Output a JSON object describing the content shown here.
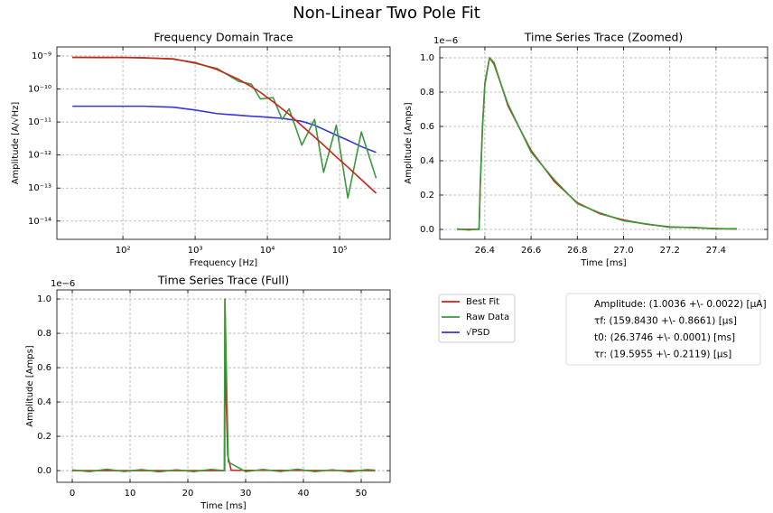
{
  "title": "Non-Linear Two Pole Fit",
  "chart_data": [
    {
      "type": "line",
      "title": "Frequency Domain Trace",
      "xlabel": "Frequency [Hz]",
      "ylabel": "Amplitude [A/√Hz]",
      "xlog": true,
      "ylog": true,
      "grid": true,
      "xlim": [
        12.2,
        500000
      ],
      "ylim": [
        2.8e-15,
        1.87e-09
      ],
      "xticks": [
        {
          "value": 100,
          "label": "10²"
        },
        {
          "value": 1000,
          "label": "10³"
        },
        {
          "value": 10000,
          "label": "10⁴"
        },
        {
          "value": 100000,
          "label": "10⁵"
        }
      ],
      "yticks": [
        {
          "value": 1e-09,
          "label": "10⁻⁹"
        },
        {
          "value": 1e-10,
          "label": "10⁻¹⁰"
        },
        {
          "value": 1e-11,
          "label": "10⁻¹¹"
        },
        {
          "value": 1e-12,
          "label": "10⁻¹²"
        },
        {
          "value": 1e-13,
          "label": "10⁻¹³"
        },
        {
          "value": 1e-14,
          "label": "10⁻¹⁴"
        }
      ],
      "x": [
        20,
        50,
        100,
        200,
        500,
        1000,
        2000,
        4000,
        6000,
        8000,
        12000,
        16000,
        20000,
        30000,
        45000,
        60000,
        90000,
        130000,
        200000,
        320000
      ],
      "series": [
        {
          "name": "Best Fit",
          "color": "#d0201a",
          "values": [
            9e-10,
            9e-10,
            8.95e-10,
            8.8e-10,
            8e-10,
            6.3e-10,
            3.9e-10,
            1.95e-10,
            1.18e-10,
            7.9e-11,
            4.1e-11,
            2.5e-11,
            1.7e-11,
            7.7e-12,
            3.5e-12,
            2e-12,
            8.8e-13,
            4.3e-13,
            1.8e-13,
            7e-14
          ]
        },
        {
          "name": "Raw Data",
          "color": "#3a9a3a",
          "values": [
            9e-10,
            8.9e-10,
            9e-10,
            8.7e-10,
            8.2e-10,
            6e-10,
            4.2e-10,
            1.7e-10,
            1.4e-10,
            5e-11,
            5.5e-11,
            1.2e-11,
            2.5e-11,
            2e-12,
            1.2e-11,
            3e-13,
            8e-12,
            5e-14,
            5e-12,
            2e-13
          ]
        },
        {
          "name": "√PSD",
          "color": "#3535dd",
          "values": [
            3e-11,
            3e-11,
            3e-11,
            3e-11,
            2.8e-11,
            2.3e-11,
            1.8e-11,
            1.6e-11,
            1.5e-11,
            1.45e-11,
            1.35e-11,
            1.3e-11,
            1.2e-11,
            1.05e-11,
            8e-12,
            6e-12,
            4e-12,
            2.8e-12,
            1.8e-12,
            1.2e-12
          ]
        }
      ]
    },
    {
      "type": "line",
      "title": "Time Series Trace (Zoomed)",
      "xlabel": "Time [ms]",
      "ylabel": "Amplitude [Amps]",
      "offset_text": "1e−6",
      "grid": true,
      "xlim": [
        26.205,
        27.623
      ],
      "ylim": [
        -0.058,
        1.063
      ],
      "xticks": [
        26.4,
        26.6,
        26.8,
        {
          "value": 27,
          "label": "27.0"
        },
        27.2,
        27.4
      ],
      "yticks": [
        {
          "value": 0,
          "label": "0.0"
        },
        0.2,
        0.4,
        0.6,
        0.8,
        {
          "value": 1,
          "label": "1.0"
        }
      ],
      "x": [
        26.28,
        26.33,
        26.37,
        26.375,
        26.38,
        26.39,
        26.4,
        26.42,
        26.44,
        26.5,
        26.6,
        26.7,
        26.8,
        26.9,
        27.0,
        27.1,
        27.2,
        27.3,
        27.4,
        27.49
      ],
      "series": [
        {
          "color": "#3a9a3a",
          "values": [
            0.003,
            -0.004,
            0.002,
            0.0,
            0.26,
            0.61,
            0.84,
            1.0,
            0.96,
            0.73,
            0.45,
            0.29,
            0.15,
            0.095,
            0.05,
            0.032,
            0.012,
            0.012,
            0.003,
            0.004
          ]
        },
        {
          "color": "#d0201a",
          "values": [
            0,
            0,
            0,
            0,
            0.25,
            0.6,
            0.85,
            1.0,
            0.97,
            0.72,
            0.46,
            0.28,
            0.155,
            0.09,
            0.055,
            0.03,
            0.015,
            0.01,
            0.005,
            0.002
          ]
        }
      ]
    },
    {
      "type": "line",
      "title": "Time Series Trace (Full)",
      "xlabel": "Time [ms]",
      "ylabel": "Amplitude [Amps]",
      "offset_text": "1e−6",
      "grid": true,
      "xlim": [
        -2.66,
        55
      ],
      "ylim": [
        -0.068,
        1.053
      ],
      "xticks": [
        0,
        10,
        20,
        30,
        40,
        50
      ],
      "yticks": [
        {
          "value": 0,
          "label": "0.0"
        },
        0.2,
        0.4,
        0.6,
        0.8,
        {
          "value": 1,
          "label": "1.0"
        }
      ],
      "series": [
        {
          "color": "#3a9a3a",
          "x": [
            0,
            3,
            6,
            9,
            12,
            15,
            18,
            21,
            24,
            26.3,
            26.42,
            27,
            30,
            33,
            36,
            39,
            42,
            45,
            48,
            51,
            52.4
          ],
          "values": [
            0.004,
            -0.006,
            0.008,
            -0.005,
            0.006,
            -0.007,
            0.005,
            -0.006,
            0.007,
            0.0,
            1.0,
            0.05,
            -0.006,
            0.007,
            -0.005,
            0.008,
            -0.006,
            0.005,
            -0.007,
            0.006,
            0.003
          ]
        },
        {
          "color": "#d0201a",
          "x": [
            0,
            26.37,
            26.42,
            26.6,
            26.9,
            27.5,
            52.4
          ],
          "values": [
            0,
            0,
            1.0,
            0.46,
            0.09,
            0.002,
            0
          ]
        }
      ]
    }
  ],
  "annotations": [
    "Amplitude: (1.0036 +\\- 0.0022) [μA]",
    "τf: (159.8430 +\\- 0.8661) [μs]",
    "t0: (26.3746 +\\- 0.0001) [ms]",
    "τr: (19.5955 +\\- 0.2119) [μs]"
  ]
}
